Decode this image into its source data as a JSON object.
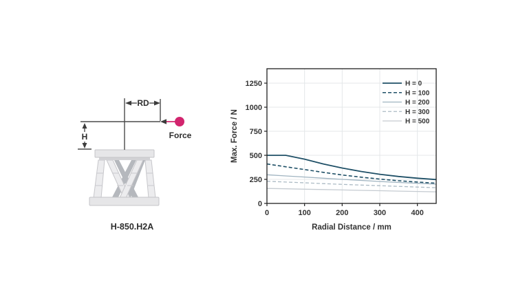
{
  "diagram": {
    "rd_label": "RD",
    "h_label": "H",
    "force_label": "Force",
    "caption": "H-850.H2A",
    "accent_color": "#d2256e",
    "line_color": "#4a4a4a"
  },
  "chart_data": {
    "type": "line",
    "title": "",
    "xlabel": "Radial Distance / mm",
    "ylabel": "Max. Force / N",
    "xlim": [
      0,
      450
    ],
    "ylim": [
      0,
      1400
    ],
    "xticks": [
      0,
      100,
      200,
      300,
      400
    ],
    "yticks": [
      0,
      250,
      500,
      750,
      1000,
      1250
    ],
    "grid": true,
    "grid_color": "#e4e7e9",
    "border_color": "#1f1f1f",
    "legend_position": "top-right",
    "x": [
      0,
      50,
      100,
      150,
      200,
      250,
      300,
      350,
      400,
      450
    ],
    "series": [
      {
        "name": "H = 0",
        "color": "#1e4f66",
        "dash": null,
        "width": 1.8,
        "values": [
          500,
          500,
          460,
          410,
          368,
          332,
          303,
          280,
          262,
          248
        ]
      },
      {
        "name": "H = 100",
        "color": "#1e4f66",
        "dash": "5,3",
        "width": 1.6,
        "values": [
          410,
          381,
          352,
          323,
          296,
          273,
          253,
          236,
          222,
          210
        ]
      },
      {
        "name": "H = 200",
        "color": "#9fb3c0",
        "dash": null,
        "width": 1.3,
        "values": [
          298,
          286,
          274,
          262,
          250,
          239,
          228,
          218,
          209,
          200
        ]
      },
      {
        "name": "H = 300",
        "color": "#abbac4",
        "dash": "5,3",
        "width": 1.3,
        "values": [
          230,
          222,
          214,
          206,
          198,
          191,
          184,
          177,
          170,
          163
        ]
      },
      {
        "name": "H = 500",
        "color": "#c5cbd1",
        "dash": null,
        "width": 1.3,
        "values": [
          156,
          152,
          148,
          144,
          140,
          136,
          132,
          128,
          124,
          120
        ]
      }
    ]
  }
}
